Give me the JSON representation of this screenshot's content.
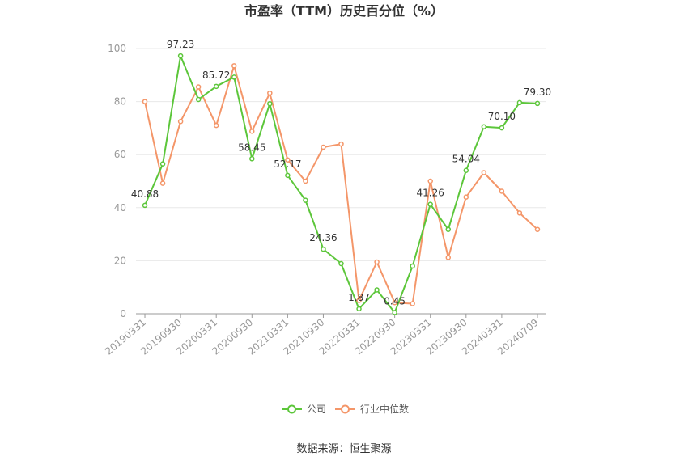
{
  "chart_data": {
    "type": "line",
    "title": "市盈率（TTM）历史百分位（%）",
    "xlabel": "",
    "ylabel": "",
    "ylim": [
      0,
      100
    ],
    "yticks": [
      0,
      20,
      40,
      60,
      80,
      100
    ],
    "x": [
      "20190331",
      "20190630",
      "20190930",
      "20191231",
      "20200331",
      "20200630",
      "20200930",
      "20201231",
      "20210331",
      "20210630",
      "20210930",
      "20211231",
      "20220331",
      "20220630",
      "20220930",
      "20221231",
      "20230331",
      "20230630",
      "20230930",
      "20231231",
      "20240331",
      "20240630",
      "20240709"
    ],
    "xtick_labels": [
      "20190331",
      "20190930",
      "20200331",
      "20200930",
      "20210331",
      "20210930",
      "20220331",
      "20220930",
      "20230331",
      "20230930",
      "20240331",
      "20240709"
    ],
    "series": [
      {
        "name": "公司",
        "color": "#5cc63a",
        "values": [
          40.88,
          56.5,
          97.23,
          80.8,
          85.72,
          89.2,
          58.45,
          79.2,
          52.17,
          42.8,
          24.36,
          18.9,
          1.87,
          9.0,
          0.45,
          18.0,
          41.26,
          31.8,
          54.04,
          70.5,
          70.1,
          79.6,
          79.3
        ]
      },
      {
        "name": "行业中位数",
        "color": "#f49669",
        "values": [
          80.0,
          49.2,
          72.5,
          85.5,
          71.0,
          93.5,
          68.8,
          83.2,
          58.0,
          50.0,
          62.8,
          64.0,
          5.0,
          19.5,
          4.2,
          3.8,
          50.0,
          21.2,
          44.0,
          53.2,
          46.2,
          38.0,
          31.8
        ]
      }
    ],
    "data_labels": [
      {
        "series": 0,
        "index": 0,
        "text": "40.88"
      },
      {
        "series": 0,
        "index": 2,
        "text": "97.23"
      },
      {
        "series": 0,
        "index": 4,
        "text": "85.72"
      },
      {
        "series": 0,
        "index": 6,
        "text": "58.45"
      },
      {
        "series": 0,
        "index": 8,
        "text": "52.17"
      },
      {
        "series": 0,
        "index": 10,
        "text": "24.36"
      },
      {
        "series": 0,
        "index": 12,
        "text": "1.87"
      },
      {
        "series": 0,
        "index": 14,
        "text": "0.45"
      },
      {
        "series": 0,
        "index": 16,
        "text": "41.26"
      },
      {
        "series": 0,
        "index": 18,
        "text": "54.04"
      },
      {
        "series": 0,
        "index": 20,
        "text": "70.10"
      },
      {
        "series": 0,
        "index": 22,
        "text": "79.30"
      }
    ],
    "legend": {
      "position": "bottom",
      "items": [
        "公司",
        "行业中位数"
      ]
    },
    "grid": true
  },
  "footer": {
    "source": "数据来源：恒生聚源"
  }
}
